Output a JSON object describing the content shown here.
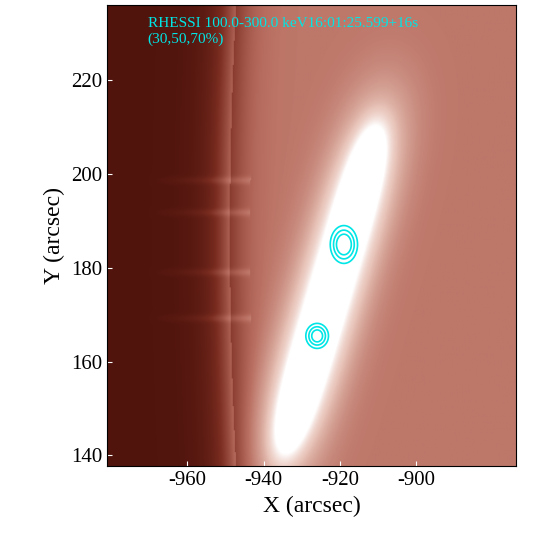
{
  "chart_data": {
    "type": "contour",
    "annotations": [
      "RHESSI 100.0-300.0 keV16:01:25.599+16s",
      "(30,50,70%)"
    ],
    "x_label": "X (arcsec)",
    "y_label": "Y (arcsec)",
    "xlim": [
      -981,
      -874
    ],
    "ylim": [
      137.7,
      236
    ],
    "xticks": [
      -960,
      -940,
      -920,
      -900
    ],
    "yticks": [
      140,
      160,
      180,
      200,
      220
    ],
    "contour_levels": [
      30,
      50,
      70
    ],
    "color": "#00e5e5",
    "sources": [
      {
        "x": -919,
        "y": 185,
        "sigma_x": 2.3,
        "sigma_y": 2.6,
        "peak": 100
      },
      {
        "x": -926,
        "y": 165.5,
        "sigma_x": 2.0,
        "sigma_y": 1.8,
        "peak": 90
      }
    ]
  }
}
